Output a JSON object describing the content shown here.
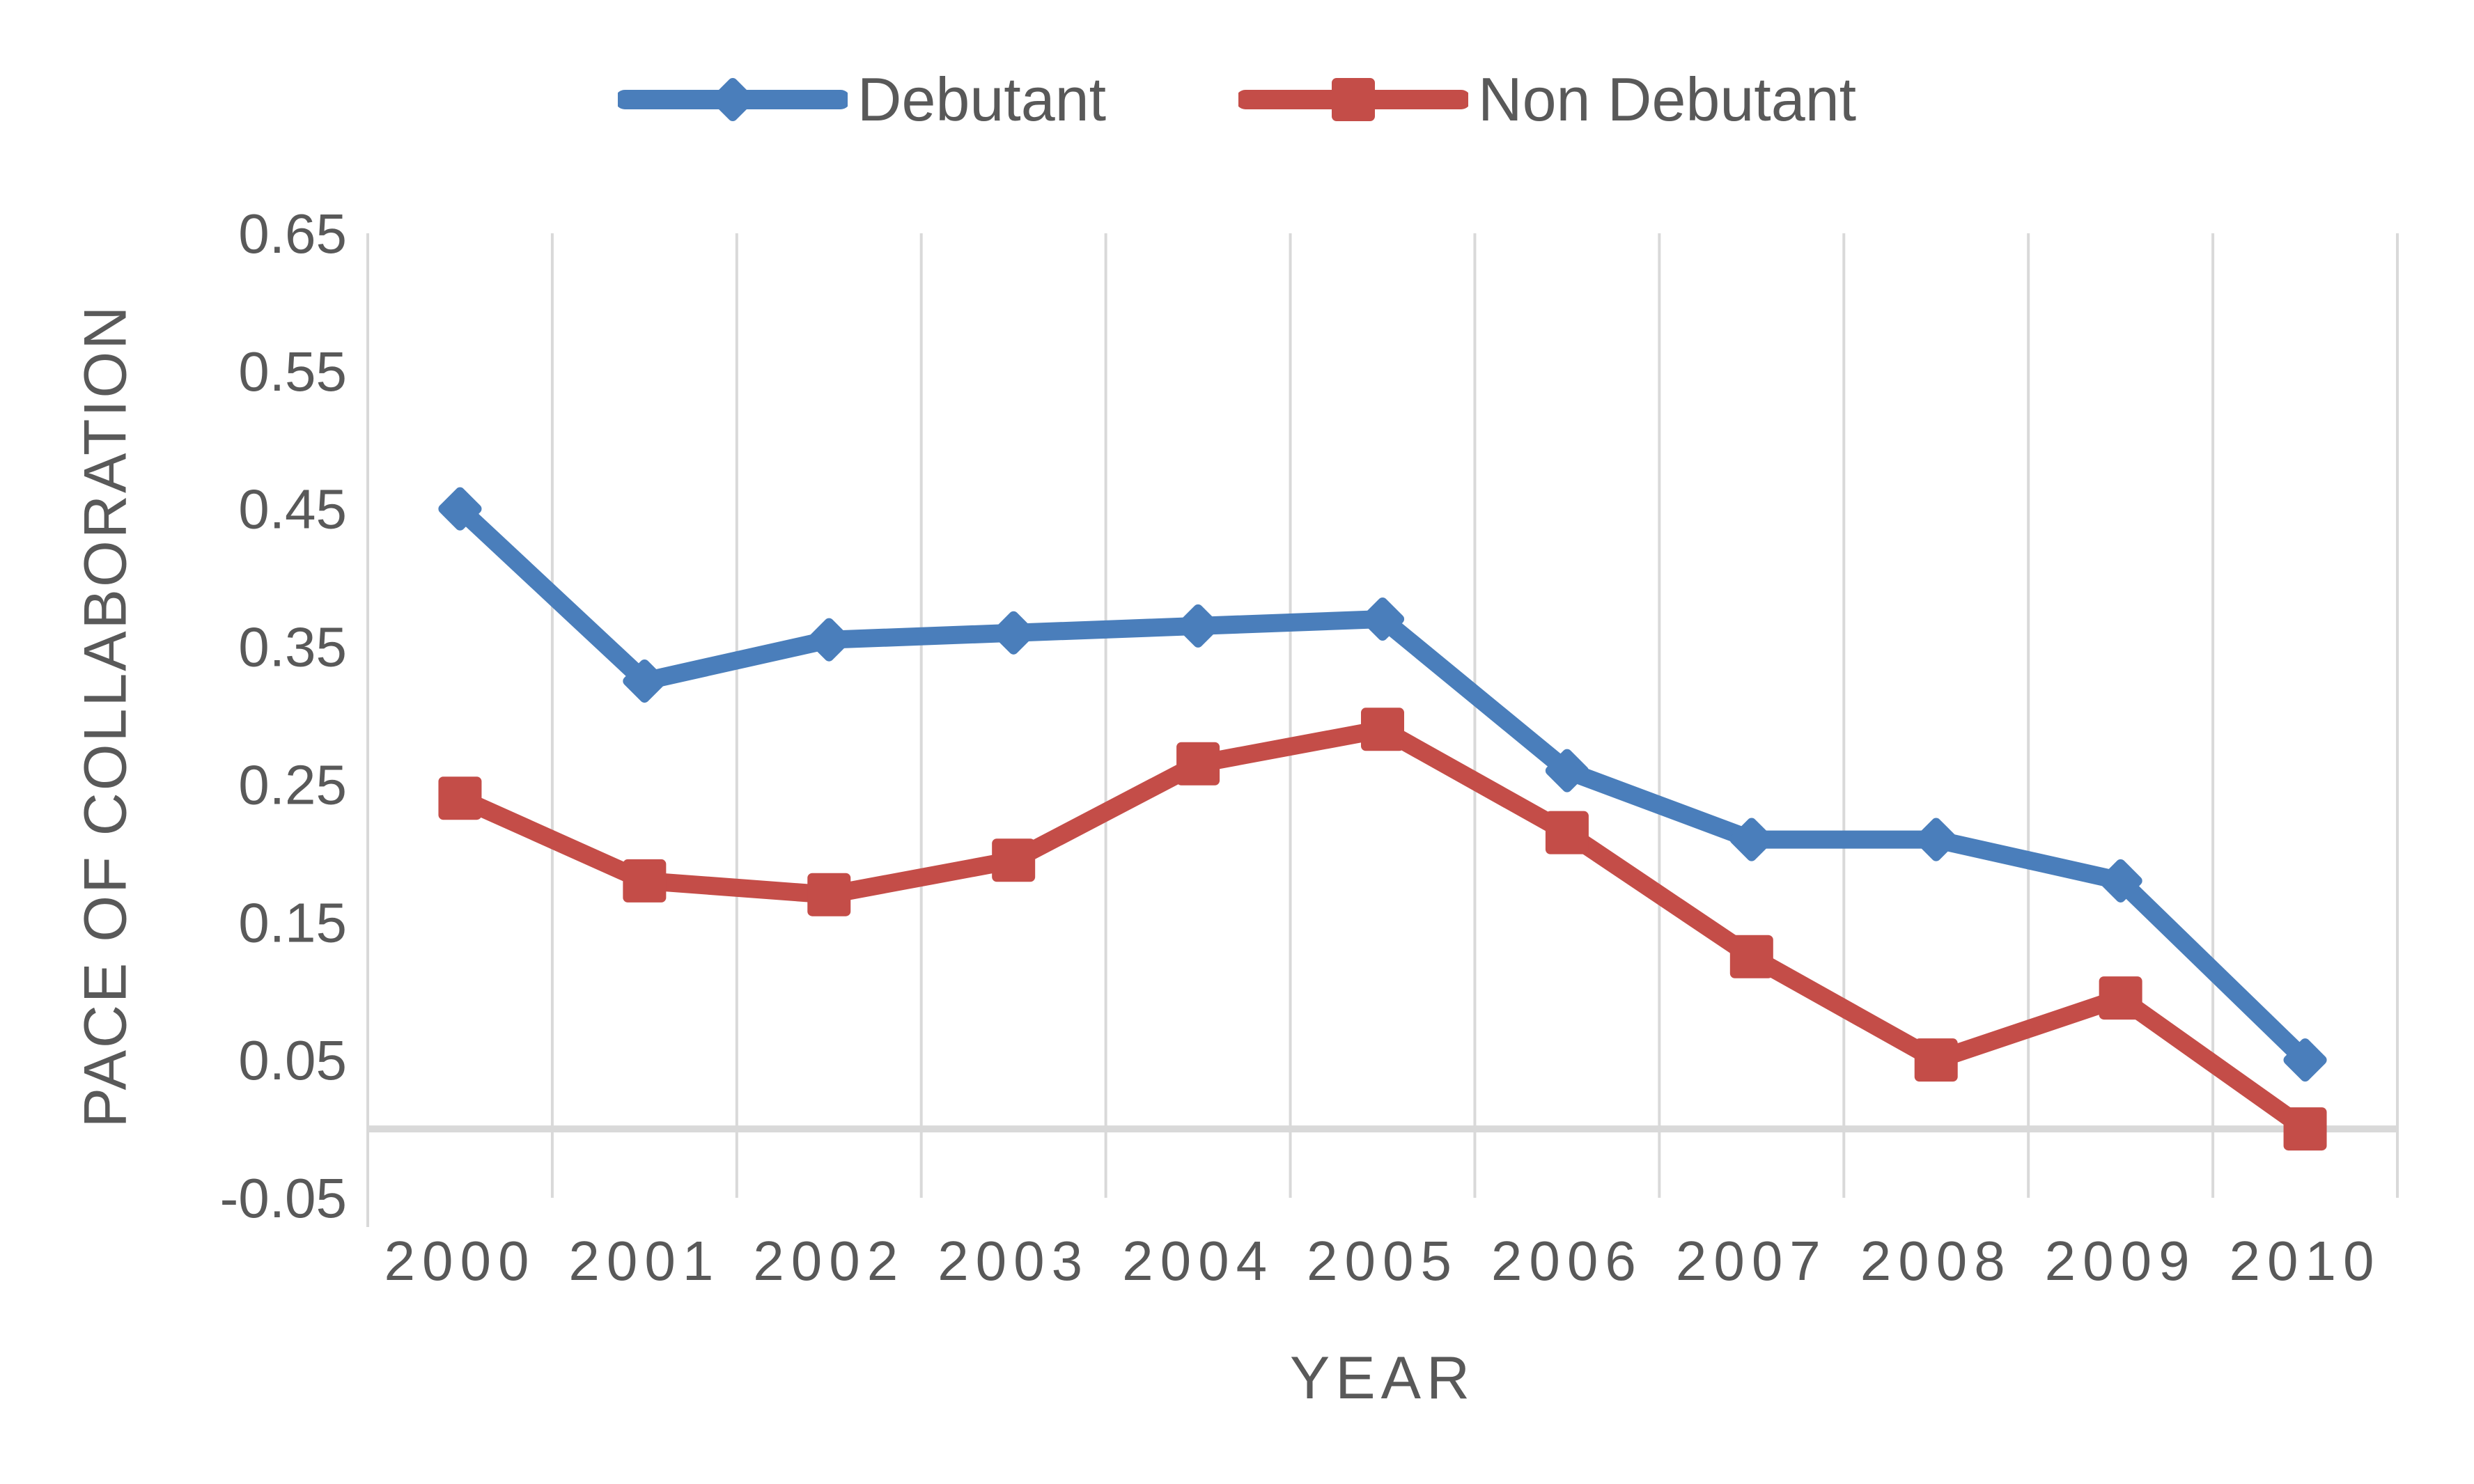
{
  "page": {
    "background": "#ffffff",
    "text_color": "#595959"
  },
  "legend": {
    "items": [
      {
        "label": "Debutant",
        "color": "#4A7EBB",
        "marker": "diamond"
      },
      {
        "label": "Non Debutant",
        "color": "#C44D48",
        "marker": "square"
      }
    ]
  },
  "chart_data": {
    "type": "line",
    "title": "",
    "xlabel": "YEAR",
    "ylabel": "PACE OF COLLABORATION",
    "categories": [
      "2000",
      "2001",
      "2002",
      "2003",
      "2004",
      "2005",
      "2006",
      "2007",
      "2008",
      "2009",
      "2010"
    ],
    "series": [
      {
        "name": "Debutant",
        "color": "#4A7EBB",
        "marker": "diamond",
        "values": [
          0.45,
          0.325,
          0.355,
          0.36,
          0.365,
          0.37,
          0.26,
          0.21,
          0.21,
          0.18,
          0.05
        ]
      },
      {
        "name": "Non Debutant",
        "color": "#C44D48",
        "marker": "square",
        "values": [
          0.24,
          0.18,
          0.17,
          0.195,
          0.265,
          0.29,
          0.215,
          0.125,
          0.05,
          0.095,
          0.0
        ]
      }
    ],
    "ylim": [
      -0.05,
      0.65
    ],
    "y_ticks": [
      "0.65",
      "0.55",
      "0.45",
      "0.35",
      "0.25",
      "0.15",
      "0.05",
      "-0.05"
    ],
    "y_tick_values": [
      0.65,
      0.55,
      0.45,
      0.35,
      0.25,
      0.15,
      0.05,
      -0.05
    ],
    "grid": {
      "vertical_gridlines": true,
      "horizontal_gridlines": false,
      "zero_line": true
    },
    "legend_position": "top",
    "grid_color": "#D9D9D9",
    "axis_text_color": "#595959"
  }
}
